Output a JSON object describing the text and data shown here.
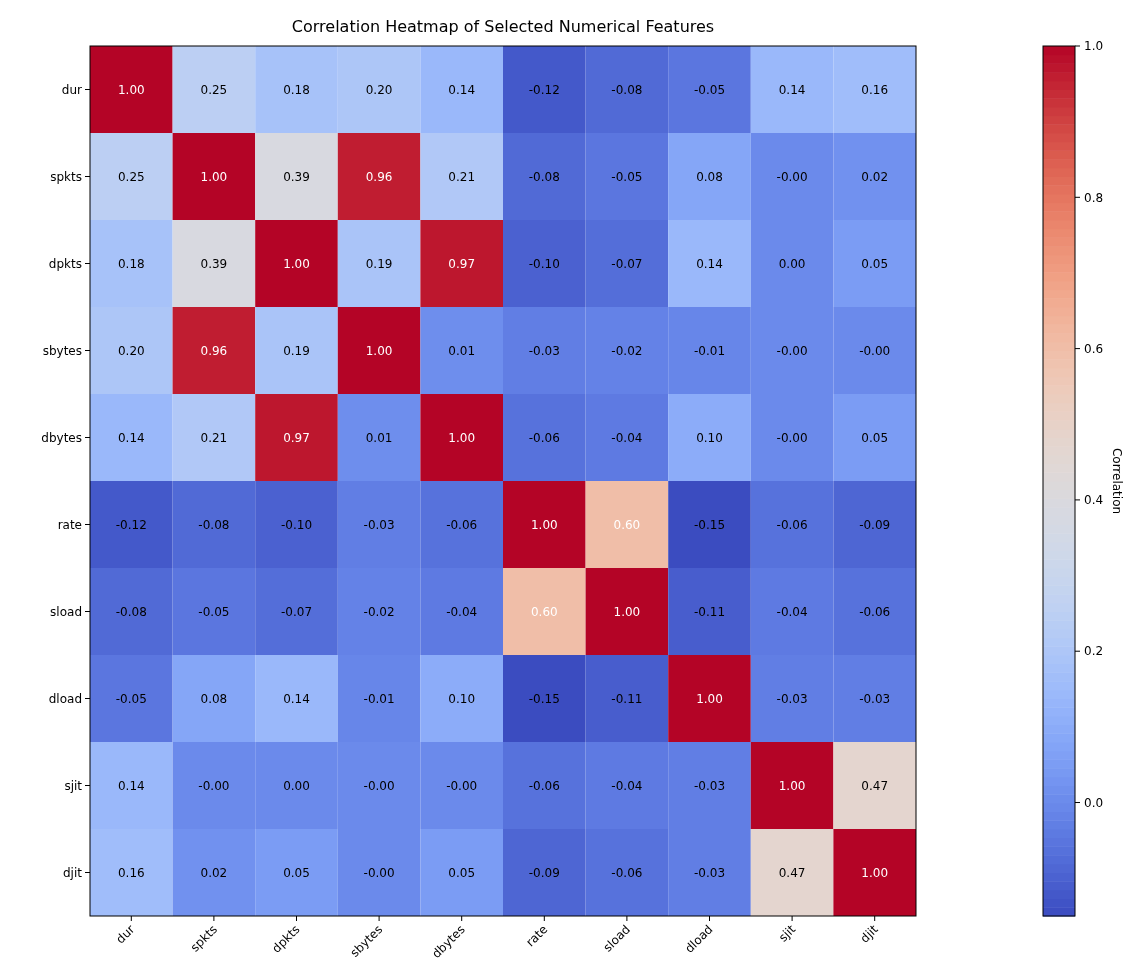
{
  "chart_data": {
    "type": "heatmap",
    "title": "Correlation Heatmap of Selected Numerical Features",
    "clabel": "Correlation",
    "categories": [
      "dur",
      "spkts",
      "dpkts",
      "sbytes",
      "dbytes",
      "rate",
      "sload",
      "dload",
      "sjit",
      "djit"
    ],
    "y_categories": [
      "dur",
      "spkts",
      "dpkts",
      "sbytes",
      "dbytes",
      "rate",
      "sload",
      "dload",
      "sjit",
      "djit"
    ],
    "cells": [
      [
        1.0,
        0.25,
        0.18,
        0.2,
        0.14,
        -0.12,
        -0.08,
        -0.05,
        0.14,
        0.16
      ],
      [
        0.25,
        1.0,
        0.39,
        0.96,
        0.21,
        -0.08,
        -0.05,
        0.08,
        0,
        0.02
      ],
      [
        0.18,
        0.39,
        1.0,
        0.19,
        0.97,
        -0.1,
        -0.07,
        0.14,
        0,
        0.05
      ],
      [
        0.2,
        0.96,
        0.19,
        1.0,
        0.01,
        -0.03,
        -0.02,
        -0.01,
        0,
        0
      ],
      [
        0.14,
        0.21,
        0.97,
        0.01,
        1.0,
        -0.06,
        -0.04,
        0.1,
        0,
        0.05
      ],
      [
        -0.12,
        -0.08,
        -0.1,
        -0.03,
        -0.06,
        1.0,
        0.6,
        -0.15,
        -0.06,
        -0.09
      ],
      [
        -0.08,
        -0.05,
        -0.07,
        -0.02,
        -0.04,
        0.6,
        1.0,
        -0.11,
        -0.04,
        -0.06
      ],
      [
        -0.05,
        0.08,
        0.14,
        -0.01,
        0.1,
        -0.15,
        -0.11,
        1.0,
        -0.03,
        -0.03
      ],
      [
        0.14,
        0,
        0,
        0,
        0,
        -0.06,
        -0.04,
        -0.03,
        1.0,
        0.47
      ],
      [
        0.16,
        0.02,
        0.05,
        0,
        0.05,
        -0.09,
        -0.06,
        -0.03,
        0.47,
        1.0
      ]
    ],
    "cell_labels": [
      [
        "1.00",
        "0.25",
        "0.18",
        "0.20",
        "0.14",
        "-0.12",
        "-0.08",
        "-0.05",
        "0.14",
        "0.16"
      ],
      [
        "0.25",
        "1.00",
        "0.39",
        "0.96",
        "0.21",
        "-0.08",
        "-0.05",
        "0.08",
        "-0.00",
        "0.02"
      ],
      [
        "0.18",
        "0.39",
        "1.00",
        "0.19",
        "0.97",
        "-0.10",
        "-0.07",
        "0.14",
        "0.00",
        "0.05"
      ],
      [
        "0.20",
        "0.96",
        "0.19",
        "1.00",
        "0.01",
        "-0.03",
        "-0.02",
        "-0.01",
        "-0.00",
        "-0.00"
      ],
      [
        "0.14",
        "0.21",
        "0.97",
        "0.01",
        "1.00",
        "-0.06",
        "-0.04",
        "0.10",
        "-0.00",
        "0.05"
      ],
      [
        "-0.12",
        "-0.08",
        "-0.10",
        "-0.03",
        "-0.06",
        "1.00",
        "0.60",
        "-0.15",
        "-0.06",
        "-0.09"
      ],
      [
        "-0.08",
        "-0.05",
        "-0.07",
        "-0.02",
        "-0.04",
        "0.60",
        "1.00",
        "-0.11",
        "-0.04",
        "-0.06"
      ],
      [
        "-0.05",
        "0.08",
        "0.14",
        "-0.01",
        "0.10",
        "-0.15",
        "-0.11",
        "1.00",
        "-0.03",
        "-0.03"
      ],
      [
        "0.14",
        "-0.00",
        "0.00",
        "-0.00",
        "-0.00",
        "-0.06",
        "-0.04",
        "-0.03",
        "1.00",
        "0.47"
      ],
      [
        "0.16",
        "0.02",
        "0.05",
        "-0.00",
        "0.05",
        "-0.09",
        "-0.06",
        "-0.03",
        "0.47",
        "1.00"
      ]
    ],
    "clim": [
      -0.15,
      1.0
    ],
    "cticks": [
      {
        "value": 0,
        "label": "0.0"
      },
      {
        "value": 0.2,
        "label": "0.2"
      },
      {
        "value": 0.4,
        "label": "0.4"
      },
      {
        "value": 0.6,
        "label": "0.6"
      },
      {
        "value": 0.8,
        "label": "0.8"
      },
      {
        "value": 1.0,
        "label": "1.0"
      }
    ]
  }
}
